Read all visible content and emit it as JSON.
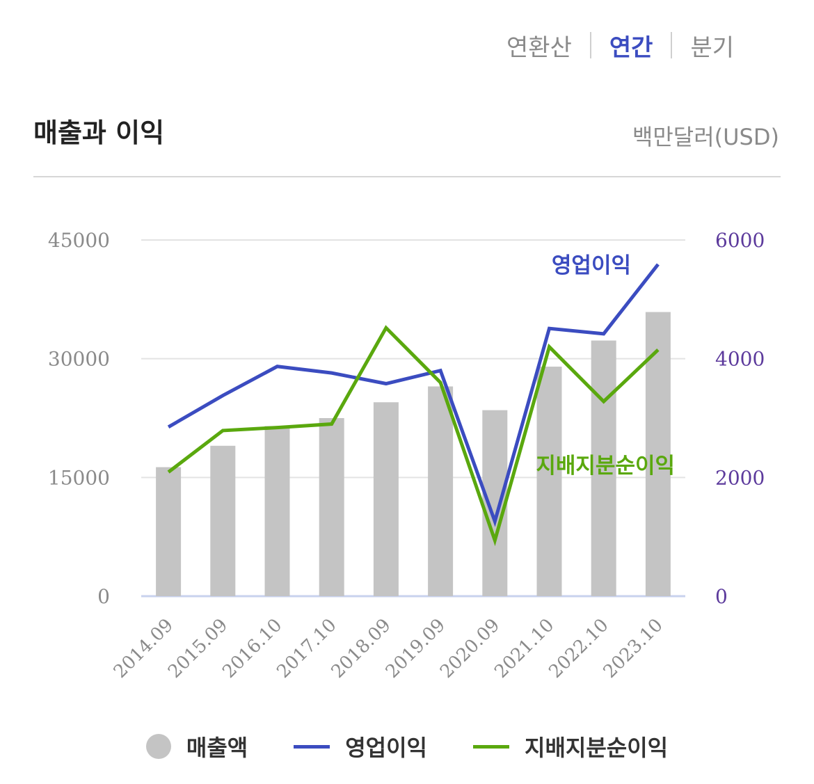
{
  "tabs": [
    "연환산",
    "연간",
    "분기"
  ],
  "active_tab": "연간",
  "title": "매출과 이익",
  "unit": "백만달러(USD)",
  "legend": [
    "매출액",
    "영업이익",
    "지배지분순이익"
  ],
  "colors": {
    "revenue": "#c4c4c4",
    "operating": "#3b4cc0",
    "net": "#5aa80e",
    "right_axis": "#5c3a9c",
    "left_axis": "#8a8a8a"
  },
  "chart_data": {
    "type": "bar",
    "categories": [
      "2014.09",
      "2015.09",
      "2016.10",
      "2017.10",
      "2018.09",
      "2019.09",
      "2020.09",
      "2021.10",
      "2022.10",
      "2023.10"
    ],
    "series": [
      {
        "name": "매출액",
        "type": "bar",
        "axis": "left",
        "values": [
          16300,
          19000,
          21500,
          22500,
          24500,
          26500,
          23500,
          29000,
          32300,
          35900
        ]
      },
      {
        "name": "영업이익",
        "type": "line",
        "axis": "right",
        "values": [
          2850,
          3380,
          3870,
          3760,
          3580,
          3800,
          1260,
          4510,
          4420,
          5590
        ]
      },
      {
        "name": "지배지분순이익",
        "type": "line",
        "axis": "right",
        "values": [
          2090,
          2790,
          2840,
          2900,
          4520,
          3600,
          940,
          4200,
          3280,
          4150
        ]
      }
    ],
    "left_axis": {
      "ticks": [
        "45000",
        "30000",
        "15000",
        "0"
      ],
      "ylim": [
        0,
        45000
      ]
    },
    "right_axis": {
      "ticks": [
        "6000",
        "4000",
        "2000",
        "0"
      ],
      "ylim": [
        0,
        6000
      ]
    },
    "annotations": [
      "영업이익",
      "지배지분순이익"
    ],
    "grid": true,
    "legend_position": "bottom"
  }
}
